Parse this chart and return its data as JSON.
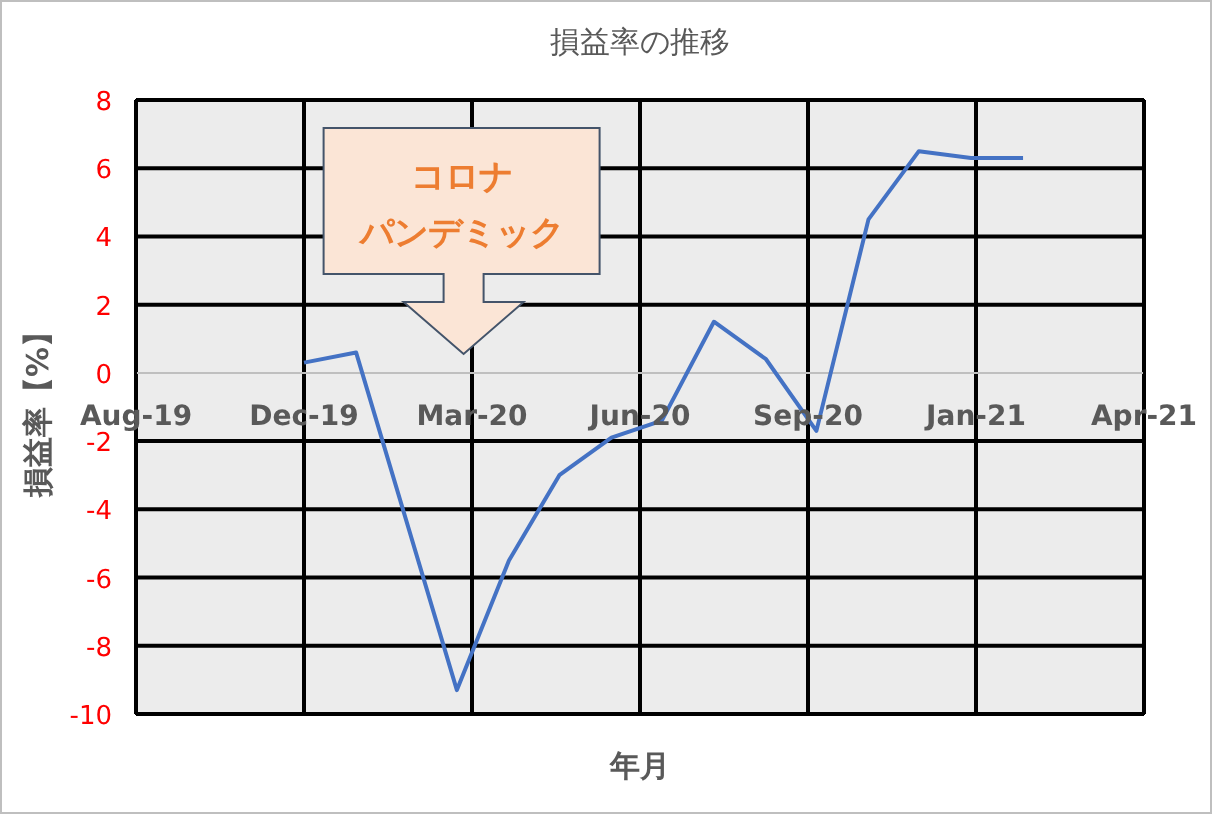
{
  "chart_data": {
    "type": "line",
    "title": "損益率の推移",
    "xlabel": "年月",
    "ylabel": "損益率【%】",
    "x": [
      "2019-12",
      "2020-01",
      "2020-03",
      "2020-04",
      "2020-05",
      "2020-06",
      "2020-07",
      "2020-08",
      "2020-09",
      "2020-10",
      "2020-11",
      "2020-12",
      "2021-01",
      "2021-02"
    ],
    "series": [
      {
        "color": "#4472c4",
        "values": [
          0.3,
          0.6,
          -9.3,
          -5.5,
          -3.0,
          -1.9,
          -1.4,
          1.5,
          0.4,
          -1.7,
          4.5,
          6.5,
          6.3,
          6.3
        ]
      }
    ],
    "xlim": [
      "2019-08-23",
      "2021-04-14"
    ],
    "xticks": [
      {
        "value": "2019-08-23",
        "label": "Aug-19"
      },
      {
        "value": "2019-12-01",
        "label": "Dec-19"
      },
      {
        "value": "2020-03-10",
        "label": "Mar-20"
      },
      {
        "value": "2020-06-18",
        "label": "Jun-20"
      },
      {
        "value": "2020-09-26",
        "label": "Sep-20"
      },
      {
        "value": "2021-01-04",
        "label": "Jan-21"
      },
      {
        "value": "2021-04-14",
        "label": "Apr-21"
      }
    ],
    "ylim": [
      -10,
      8
    ],
    "yticks": [
      -10,
      -8,
      -6,
      -4,
      -2,
      0,
      2,
      4,
      6,
      8
    ],
    "grid": true,
    "marker": "none",
    "line_style": "solid",
    "annotations": [
      "コロナ",
      "パンデミック"
    ]
  }
}
